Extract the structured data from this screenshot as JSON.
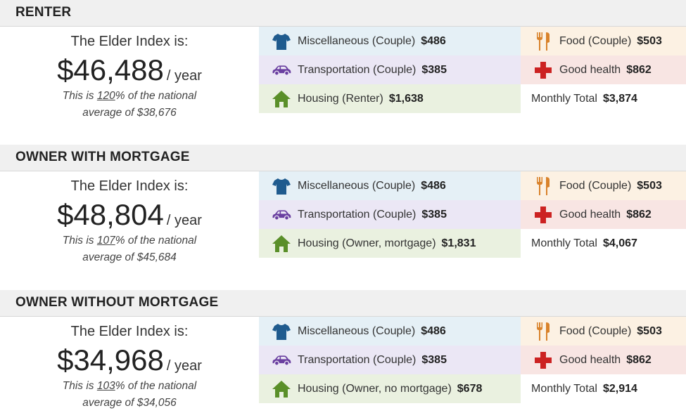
{
  "sections": [
    {
      "title": "RENTER",
      "lead": "The Elder Index is:",
      "amount": "$46,488",
      "unit": "/ year",
      "note_pre": "This is ",
      "pct": "120",
      "note_mid": "% of the national",
      "note_avg": "average of $38,676",
      "misc_label": "Miscellaneous (Couple)",
      "misc_value": "$486",
      "trans_label": "Transportation (Couple)",
      "trans_value": "$385",
      "housing_label": "Housing (Renter)",
      "housing_value": "$1,638",
      "food_label": "Food (Couple)",
      "food_value": "$503",
      "health_label": "Good health",
      "health_value": "$862",
      "total_label": "Monthly Total",
      "total_value": "$3,874"
    },
    {
      "title": "OWNER WITH MORTGAGE",
      "lead": "The Elder Index is:",
      "amount": "$48,804",
      "unit": "/ year",
      "note_pre": "This is ",
      "pct": "107",
      "note_mid": "% of the national",
      "note_avg": "average of $45,684",
      "misc_label": "Miscellaneous (Couple)",
      "misc_value": "$486",
      "trans_label": "Transportation (Couple)",
      "trans_value": "$385",
      "housing_label": "Housing (Owner, mortgage)",
      "housing_value": "$1,831",
      "food_label": "Food (Couple)",
      "food_value": "$503",
      "health_label": "Good health",
      "health_value": "$862",
      "total_label": "Monthly Total",
      "total_value": "$4,067"
    },
    {
      "title": "OWNER WITHOUT MORTGAGE",
      "lead": "The Elder Index is:",
      "amount": "$34,968",
      "unit": "/ year",
      "note_pre": "This is ",
      "pct": "103",
      "note_mid": "% of the national",
      "note_avg": "average of $34,056",
      "misc_label": "Miscellaneous (Couple)",
      "misc_value": "$486",
      "trans_label": "Transportation (Couple)",
      "trans_value": "$385",
      "housing_label": "Housing (Owner, no mortgage)",
      "housing_value": "$678",
      "food_label": "Food (Couple)",
      "food_value": "$503",
      "health_label": "Good health",
      "health_value": "$862",
      "total_label": "Monthly Total",
      "total_value": "$2,914"
    }
  ],
  "icons": {
    "misc": "tshirt-icon",
    "transportation": "car-icon",
    "housing": "house-icon",
    "food": "fork-knife-icon",
    "health": "medical-cross-icon"
  },
  "colors": {
    "misc_icon": "#1f5b8e",
    "transportation_icon": "#6a3fa0",
    "housing_icon": "#5a8f29",
    "food_icon": "#d9822b",
    "health_icon": "#cc2222"
  }
}
